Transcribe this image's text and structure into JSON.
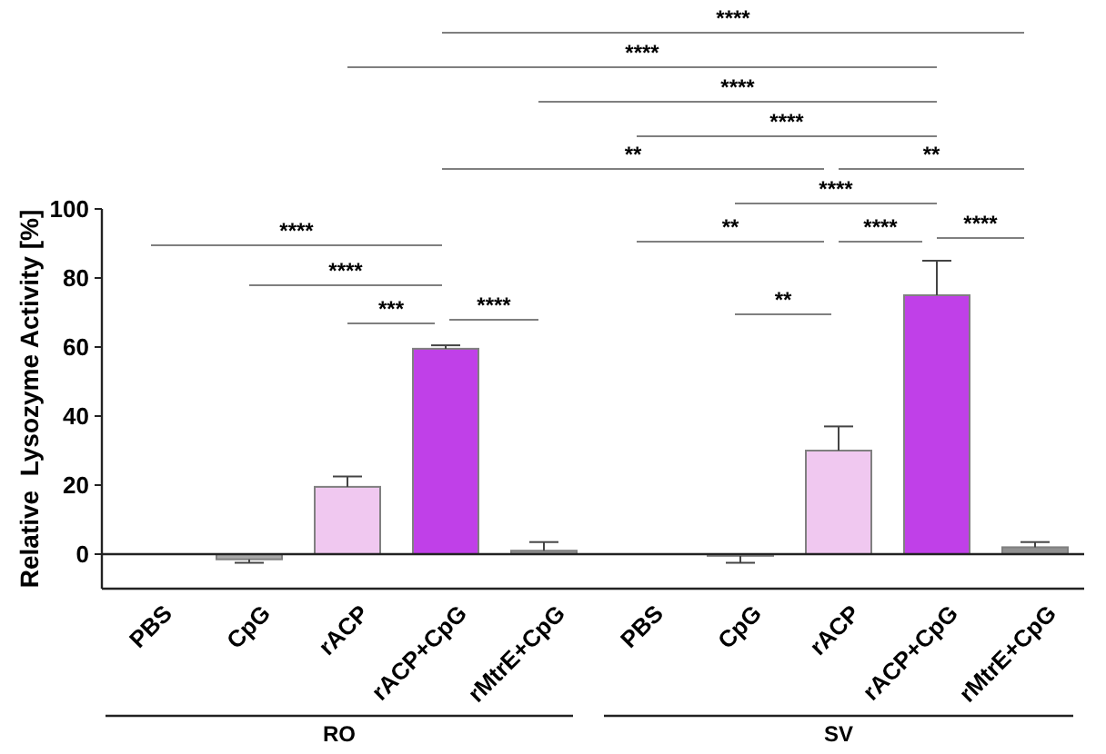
{
  "chart_data": {
    "type": "bar",
    "ylabel": "Relative  Lysozyme Activity [%]",
    "categories": [
      "PBS",
      "CpG",
      "rACP",
      "rACP+CpG",
      "rMtrE+CpG",
      "PBS",
      "CpG",
      "rACP",
      "rACP+CpG",
      "rMtrE+CpG"
    ],
    "values": [
      0,
      -1.5,
      19.5,
      59.5,
      1,
      0,
      -0.5,
      30,
      75,
      2
    ],
    "errors": [
      null,
      [
        -2.5,
        -1.5
      ],
      [
        19.5,
        22.5
      ],
      [
        59.5,
        60.5
      ],
      [
        1,
        3.5
      ],
      null,
      [
        -2.5,
        -0.5
      ],
      [
        30,
        37
      ],
      [
        75,
        85
      ],
      [
        2,
        3.5
      ]
    ],
    "colors": [
      "#ffffff",
      "#a8a8a8",
      "#f0c8f0",
      "#c040e8",
      "#909090",
      "#ffffff",
      "#c0c0c0",
      "#f0c8f0",
      "#c040e8",
      "#909090"
    ],
    "ylim": [
      -10,
      100
    ],
    "yticks": [
      0,
      20,
      40,
      60,
      80,
      100
    ],
    "annotations": [
      "****",
      "****",
      "****",
      "****",
      "**",
      "**",
      "****",
      "**",
      "****",
      "****",
      "****",
      "****",
      "***",
      "****",
      "**",
      "RO",
      "SV"
    ]
  }
}
